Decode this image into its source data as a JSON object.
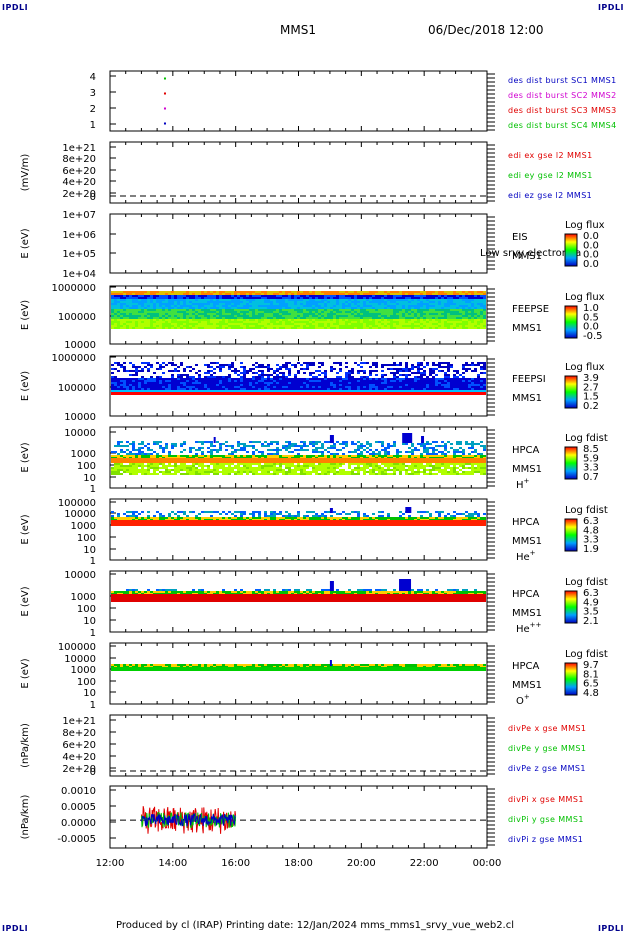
{
  "corners": {
    "tl": "IPDLI",
    "tr": "IPDLI",
    "bl": "IPDLI",
    "br": "IPDLI"
  },
  "header": {
    "title": "MMS1",
    "date": "06/Dec/2018 12:00"
  },
  "footer": "Produced by cl (IRAP)   Printing date: 12/Jan/2024   mms_mms1_srvy_vue_web2.cl",
  "colors": {
    "red": "#e00000",
    "green": "#00c000",
    "blue": "#0000c0",
    "magenta": "#d000d0"
  },
  "chart_data": [
    {
      "type": "scatter",
      "name": "burst",
      "ylabel": "",
      "yticks": [
        "4",
        "3",
        "2",
        "1"
      ],
      "ylim": [
        0.5,
        4.5
      ],
      "legend": [
        {
          "text": "des dist burst SC1 MMS1",
          "color": "#0000c0"
        },
        {
          "text": "des dist burst SC2 MMS2",
          "color": "#d000d0"
        },
        {
          "text": "des dist burst SC3 MMS3",
          "color": "#e00000"
        },
        {
          "text": "des dist burst SC4 MMS4",
          "color": "#00c000"
        }
      ],
      "points": [
        {
          "x": 13.75,
          "y": 4,
          "color": "#00c000"
        },
        {
          "x": 13.75,
          "y": 3,
          "color": "#e00000"
        },
        {
          "x": 13.75,
          "y": 2,
          "color": "#d000d0"
        },
        {
          "x": 13.75,
          "y": 1,
          "color": "#0000c0"
        }
      ]
    },
    {
      "type": "line",
      "name": "edi",
      "ylabel": "(mV/m)",
      "yticks": [
        "1e+21",
        "8e+20",
        "6e+20",
        "4e+20",
        "2e+20",
        "0"
      ],
      "ylim": [
        -4e+19,
        1.1e+21
      ],
      "legend": [
        {
          "text": "edi ex gse l2 MMS1",
          "color": "#e00000"
        },
        {
          "text": "edi ey gse l2 MMS1",
          "color": "#00c000"
        },
        {
          "text": "edi ez gse l2 MMS1",
          "color": "#0000c0"
        }
      ],
      "zero_line": true
    },
    {
      "type": "heatmap",
      "name": "eis",
      "ylabel": "E (eV)",
      "yticks": [
        "1e+07",
        "1e+06",
        "1e+05",
        "1e+04"
      ],
      "instrument": [
        "EIS",
        "MMS1"
      ],
      "overlap_text": "Low srvy electron ta",
      "colorbar": {
        "title": "Log flux",
        "labels": [
          "0.0",
          "0.0",
          "0.0",
          "0.0"
        ]
      }
    },
    {
      "type": "heatmap",
      "name": "feeps_e",
      "ylabel": "E (eV)",
      "yticks": [
        "1000000",
        "100000",
        "10000"
      ],
      "instrument": [
        "FEEPSE",
        "MMS1"
      ],
      "colorbar": {
        "title": "Log flux",
        "labels": [
          "1.0",
          "0.5",
          "0.0",
          "-0.5"
        ]
      }
    },
    {
      "type": "heatmap",
      "name": "feeps_i",
      "ylabel": "E (eV)",
      "yticks": [
        "1000000",
        "100000",
        "10000"
      ],
      "instrument": [
        "FEEPSI",
        "MMS1"
      ],
      "colorbar": {
        "title": "Log flux",
        "labels": [
          "3.9",
          "2.7",
          "1.5",
          "0.2"
        ]
      }
    },
    {
      "type": "heatmap",
      "name": "hpca_h",
      "ylabel": "E (eV)",
      "yticks": [
        "10000",
        "1000",
        "100",
        "10",
        "1"
      ],
      "instrument": [
        "HPCA",
        "MMS1"
      ],
      "species": "H",
      "charge": "+",
      "colorbar": {
        "title": "Log fdist",
        "labels": [
          "8.5",
          "5.9",
          "3.3",
          "0.7"
        ]
      }
    },
    {
      "type": "heatmap",
      "name": "hpca_he",
      "ylabel": "E (eV)",
      "yticks": [
        "100000",
        "10000",
        "1000",
        "100",
        "10",
        "1"
      ],
      "instrument": [
        "HPCA",
        "MMS1"
      ],
      "species": "He",
      "charge": "+",
      "colorbar": {
        "title": "Log fdist",
        "labels": [
          "6.3",
          "4.8",
          "3.3",
          "1.9"
        ]
      }
    },
    {
      "type": "heatmap",
      "name": "hpca_hepp",
      "ylabel": "E (eV)",
      "yticks": [
        "10000",
        "1000",
        "100",
        "10",
        "1"
      ],
      "instrument": [
        "HPCA",
        "MMS1"
      ],
      "species": "He",
      "charge": "++",
      "colorbar": {
        "title": "Log fdist",
        "labels": [
          "6.3",
          "4.9",
          "3.5",
          "2.1"
        ]
      }
    },
    {
      "type": "heatmap",
      "name": "hpca_o",
      "ylabel": "E (eV)",
      "yticks": [
        "100000",
        "10000",
        "1000",
        "100",
        "10",
        "1"
      ],
      "instrument": [
        "HPCA",
        "MMS1"
      ],
      "species": "O",
      "charge": "+",
      "colorbar": {
        "title": "Log fdist",
        "labels": [
          "9.7",
          "8.1",
          "6.5",
          "4.8"
        ]
      }
    },
    {
      "type": "line",
      "name": "divpe",
      "ylabel": "(nPa/km)",
      "yticks": [
        "1e+21",
        "8e+20",
        "6e+20",
        "4e+20",
        "2e+20",
        "0"
      ],
      "ylim": [
        -4e+19,
        1.1e+21
      ],
      "legend": [
        {
          "text": "divPe x gse MMS1",
          "color": "#e00000"
        },
        {
          "text": "divPe y gse MMS1",
          "color": "#00c000"
        },
        {
          "text": "divPe z gse MMS1",
          "color": "#0000c0"
        }
      ],
      "zero_line": true
    },
    {
      "type": "line",
      "name": "divpi",
      "ylabel": "(nPa/km)",
      "yticks": [
        "0.0010",
        "0.0005",
        "0.0000",
        "-0.0005"
      ],
      "ylim": [
        -0.0009,
        0.0011
      ],
      "legend": [
        {
          "text": "divPi x gse MMS1",
          "color": "#e00000"
        },
        {
          "text": "divPi y gse MMS1",
          "color": "#00c000"
        },
        {
          "text": "divPi z gse MMS1",
          "color": "#0000c0"
        }
      ],
      "zero_line": true,
      "data_range_hours": [
        13.0,
        16.0
      ]
    }
  ],
  "xaxis": {
    "ticks": [
      "12:00",
      "14:00",
      "16:00",
      "18:00",
      "20:00",
      "22:00",
      "00:00"
    ],
    "range": [
      12,
      24
    ]
  }
}
